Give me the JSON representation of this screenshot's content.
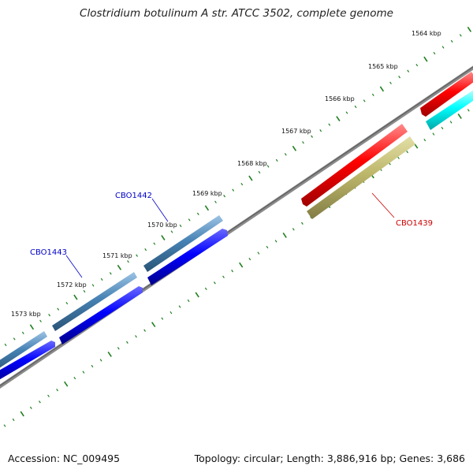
{
  "title": "Clostridium botulinum A str. ATCC 3502, complete genome",
  "footer": {
    "accession": "Accession: NC_009495",
    "summary": "Topology: circular; Length: 3,886,916 bp; Genes: 3,686"
  },
  "scale_labels": [
    "1564 kbp",
    "1565 kbp",
    "1566 kbp",
    "1567 kbp",
    "1568 kbp",
    "1569 kbp",
    "1570 kbp",
    "1571 kbp",
    "1572 kbp",
    "1573 kbp"
  ],
  "genes": [
    {
      "label": "CBO1442",
      "color": "#0000cc"
    },
    {
      "label": "CBO1443",
      "color": "#0000cc"
    },
    {
      "label": "CBO1439",
      "color": "#cc0000"
    }
  ],
  "colors": {
    "backbone": "#7f7f7f",
    "tick": "#1f7f1f",
    "steelblue": "#4682b4",
    "blue": "#0000ff",
    "red": "#ff0000",
    "cyan": "#00ffff",
    "khaki": "#bdb76b"
  }
}
